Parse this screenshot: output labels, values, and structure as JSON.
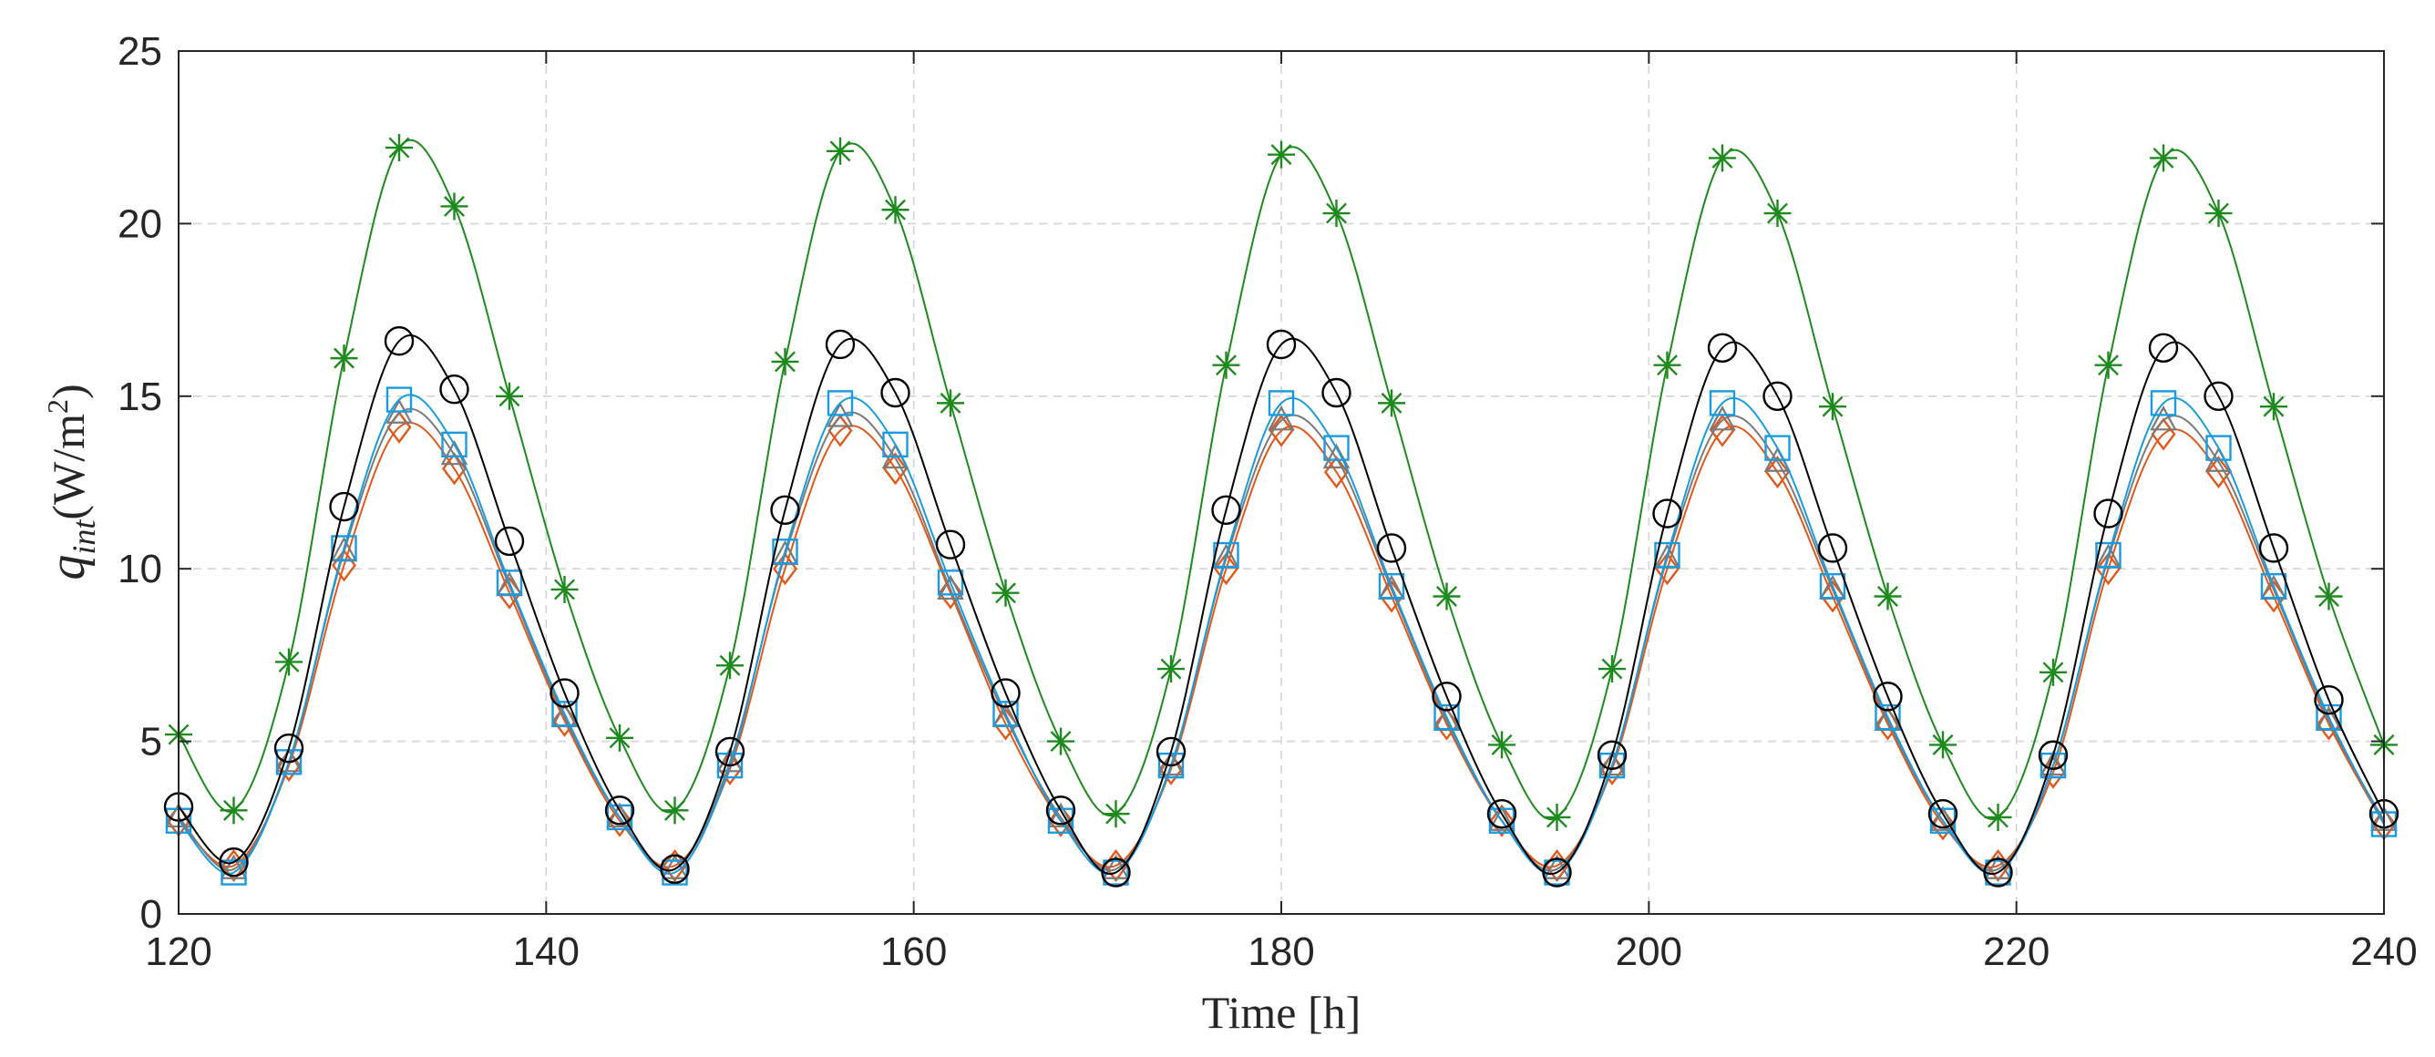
{
  "chart_data": {
    "type": "line",
    "title": "",
    "xlabel": "Time [h]",
    "ylabel_base": "q",
    "ylabel_subscript": "int",
    "ylabel_unit": "(W/m",
    "ylabel_unit_sup": "2",
    "ylabel_unit_close": ")",
    "xlim": [
      120,
      240
    ],
    "ylim": [
      0,
      25
    ],
    "xticks": [
      120,
      140,
      160,
      180,
      200,
      220,
      240
    ],
    "yticks": [
      0,
      5,
      10,
      15,
      20,
      25
    ],
    "grid": true,
    "x": [
      120,
      123,
      126,
      129,
      132,
      135,
      138,
      141,
      144,
      147,
      150,
      153,
      156,
      159,
      162,
      165,
      168,
      171,
      174,
      177,
      180,
      183,
      186,
      189,
      192,
      195,
      198,
      201,
      204,
      207,
      210,
      213,
      216,
      219,
      222,
      225,
      228,
      231,
      234,
      237,
      240
    ],
    "series": [
      {
        "name": "case-green-star",
        "color": "#1e8a1e",
        "marker": "star",
        "values": [
          5.2,
          3.0,
          7.3,
          16.1,
          22.2,
          20.5,
          15.0,
          9.4,
          5.1,
          3.0,
          7.2,
          16.0,
          22.1,
          20.4,
          14.8,
          9.3,
          5.0,
          2.9,
          7.1,
          15.9,
          22.0,
          20.3,
          14.8,
          9.2,
          4.9,
          2.8,
          7.1,
          15.9,
          21.9,
          20.3,
          14.7,
          9.2,
          4.9,
          2.8,
          7.0,
          15.9,
          21.9,
          20.3,
          14.7,
          9.2,
          4.9
        ]
      },
      {
        "name": "case-black-circle",
        "color": "#000000",
        "marker": "circle",
        "values": [
          3.1,
          1.5,
          4.8,
          11.8,
          16.6,
          15.2,
          10.8,
          6.4,
          3.0,
          1.3,
          4.7,
          11.7,
          16.5,
          15.1,
          10.7,
          6.4,
          3.0,
          1.2,
          4.7,
          11.7,
          16.5,
          15.1,
          10.6,
          6.3,
          2.9,
          1.2,
          4.6,
          11.6,
          16.4,
          15.0,
          10.6,
          6.3,
          2.9,
          1.2,
          4.6,
          11.6,
          16.4,
          15.0,
          10.6,
          6.2,
          2.9
        ]
      },
      {
        "name": "case-blue-square",
        "color": "#1a9be0",
        "marker": "square",
        "values": [
          2.7,
          1.2,
          4.4,
          10.6,
          14.9,
          13.6,
          9.6,
          5.8,
          2.8,
          1.2,
          4.3,
          10.5,
          14.8,
          13.6,
          9.6,
          5.8,
          2.7,
          1.2,
          4.3,
          10.4,
          14.8,
          13.5,
          9.5,
          5.7,
          2.7,
          1.2,
          4.3,
          10.4,
          14.8,
          13.5,
          9.5,
          5.7,
          2.7,
          1.2,
          4.3,
          10.4,
          14.8,
          13.5,
          9.5,
          5.7,
          2.6
        ]
      },
      {
        "name": "case-gray-triangle",
        "color": "#7a7a7a",
        "marker": "triangle",
        "values": [
          2.8,
          1.3,
          4.4,
          10.5,
          14.5,
          13.3,
          9.5,
          5.7,
          2.8,
          1.3,
          4.4,
          10.4,
          14.4,
          13.2,
          9.4,
          5.7,
          2.8,
          1.3,
          4.3,
          10.3,
          14.3,
          13.2,
          9.4,
          5.6,
          2.7,
          1.3,
          4.3,
          10.3,
          14.3,
          13.1,
          9.4,
          5.6,
          2.7,
          1.3,
          4.3,
          10.3,
          14.3,
          13.1,
          9.4,
          5.6,
          2.7
        ]
      },
      {
        "name": "case-orange-diamond",
        "color": "#e0581a",
        "marker": "diamond",
        "values": [
          2.7,
          1.4,
          4.3,
          10.1,
          14.1,
          12.9,
          9.3,
          5.6,
          2.7,
          1.4,
          4.2,
          10.0,
          14.0,
          12.9,
          9.3,
          5.5,
          2.7,
          1.4,
          4.2,
          10.0,
          14.0,
          12.8,
          9.2,
          5.5,
          2.7,
          1.4,
          4.2,
          10.0,
          14.0,
          12.8,
          9.2,
          5.5,
          2.6,
          1.4,
          4.1,
          10.0,
          13.9,
          12.8,
          9.2,
          5.5,
          2.6
        ]
      }
    ]
  }
}
